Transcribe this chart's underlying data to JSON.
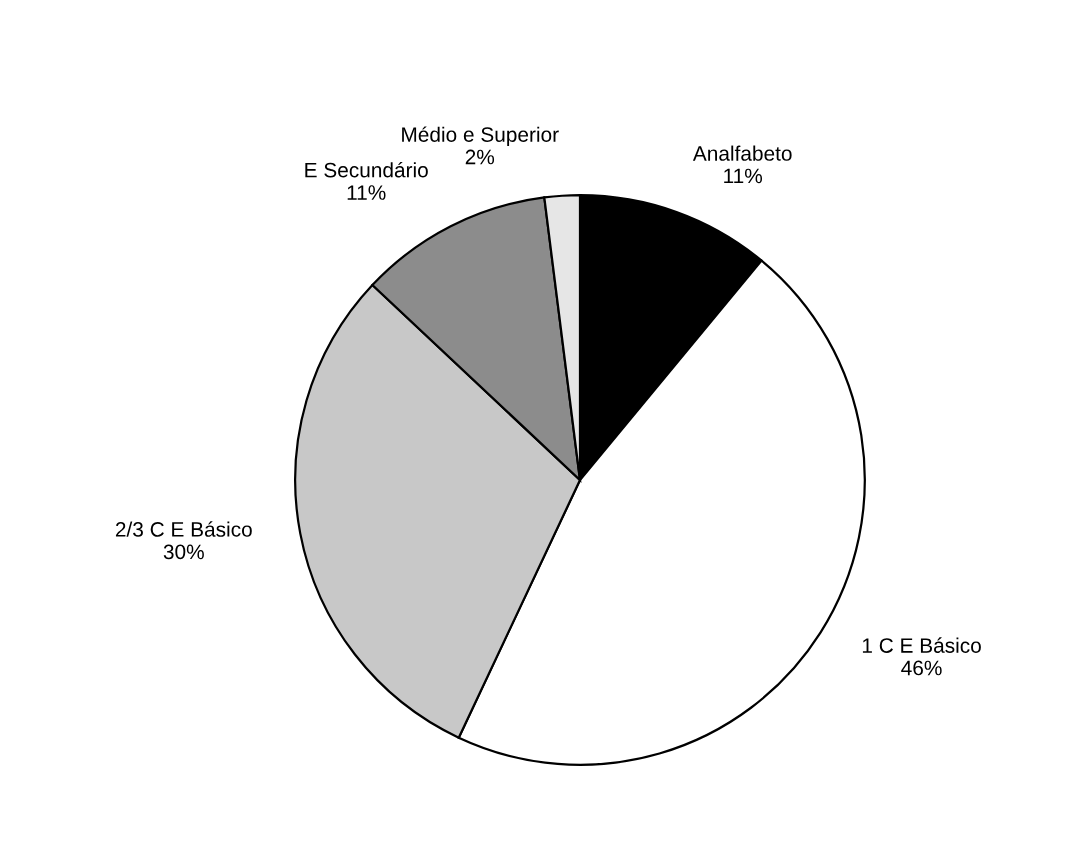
{
  "chart_data": {
    "type": "pie",
    "categories": [
      "Analfabeto",
      "1 C E Básico",
      "2/3 C E Básico",
      "E Secundário",
      "Médio e Superior"
    ],
    "values": [
      11,
      46,
      30,
      11,
      2
    ],
    "value_labels": [
      "11%",
      "46%",
      "30%",
      "11%",
      "2%"
    ],
    "colors": [
      "#000000",
      "#ffffff",
      "#c8c8c8",
      "#8c8c8c",
      "#e6e6e6"
    ]
  }
}
